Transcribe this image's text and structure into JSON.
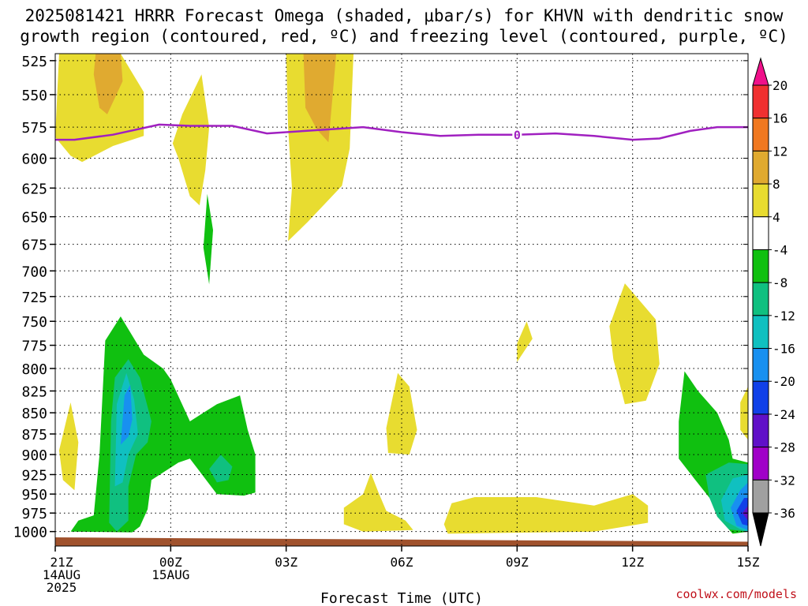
{
  "title_line1": "2025081421 HRRR Forecast Omega (shaded, μbar/s) for KHVN with dendritic snow",
  "title_line2": "growth region (contoured, red, ºC) and freezing level (contoured, purple, ºC)",
  "credit": "coolwx.com/models",
  "chart_data": {
    "type": "heatmap",
    "title": "2025081421 HRRR Forecast Omega (shaded, μbar/s) for KHVN",
    "xlabel": "Forecast Time (UTC)",
    "ylabel": "",
    "x_hours": [
      0,
      3,
      6,
      9,
      12,
      15,
      18
    ],
    "x_ticks": [
      {
        "hour": 0,
        "lines": [
          "21Z",
          "14AUG",
          "2025"
        ]
      },
      {
        "hour": 3,
        "lines": [
          "00Z",
          "15AUG"
        ]
      },
      {
        "hour": 6,
        "lines": [
          "03Z"
        ]
      },
      {
        "hour": 9,
        "lines": [
          "06Z"
        ]
      },
      {
        "hour": 12,
        "lines": [
          "09Z"
        ]
      },
      {
        "hour": 15,
        "lines": [
          "12Z"
        ]
      },
      {
        "hour": 18,
        "lines": [
          "15Z"
        ]
      }
    ],
    "y_ticks": [
      525,
      550,
      575,
      600,
      625,
      650,
      675,
      700,
      725,
      750,
      775,
      800,
      825,
      850,
      875,
      900,
      925,
      950,
      975,
      1000
    ],
    "xlim": [
      0,
      18
    ],
    "ylim_hpa": [
      520,
      1020
    ],
    "y_scale": "log-pressure",
    "grid": true,
    "colorbar": {
      "labels": [
        "20",
        "16",
        "12",
        "8",
        "4",
        "-4",
        "-8",
        "-12",
        "-16",
        "-20",
        "-24",
        "-28",
        "-32",
        "-36"
      ],
      "colors": [
        "#f0108a",
        "#f03030",
        "#f07820",
        "#e0aa30",
        "#e8dc30",
        "#ffffff",
        "#10c010",
        "#10c080",
        "#10c0c0",
        "#1890f0",
        "#1040e8",
        "#6010c8",
        "#a000c8",
        "#a0a0a0",
        "#000000"
      ]
    },
    "freezing_level": {
      "label": "0",
      "label_hour": 12,
      "color": "#a020c0",
      "points": [
        [
          0,
          585
        ],
        [
          0.5,
          585
        ],
        [
          1.5,
          581
        ],
        [
          2.7,
          573
        ],
        [
          3.5,
          574
        ],
        [
          4.6,
          574
        ],
        [
          5.5,
          580
        ],
        [
          6.5,
          578
        ],
        [
          8,
          575
        ],
        [
          9,
          579
        ],
        [
          10,
          582
        ],
        [
          11,
          581
        ],
        [
          12,
          581
        ],
        [
          13,
          580
        ],
        [
          14,
          582
        ],
        [
          15,
          585
        ],
        [
          15.7,
          584
        ],
        [
          16.5,
          578
        ],
        [
          17.2,
          575
        ],
        [
          18,
          575
        ]
      ]
    },
    "omega_regions": [
      {
        "level": "4",
        "color": "#e8dc30",
        "points": [
          [
            0.1,
            520
          ],
          [
            1.7,
            520
          ],
          [
            2.3,
            548
          ],
          [
            2.3,
            582
          ],
          [
            1.5,
            590
          ],
          [
            0.7,
            603
          ],
          [
            0.4,
            598
          ],
          [
            0,
            583
          ]
        ]
      },
      {
        "level": "8",
        "color": "#e0aa30",
        "points": [
          [
            1.05,
            520
          ],
          [
            1.7,
            520
          ],
          [
            1.75,
            540
          ],
          [
            1.35,
            565
          ],
          [
            1.15,
            560
          ],
          [
            1.0,
            535
          ]
        ]
      },
      {
        "level": "4",
        "color": "#e8dc30",
        "points": [
          [
            3.05,
            588
          ],
          [
            3.3,
            565
          ],
          [
            3.8,
            535
          ],
          [
            4.0,
            575
          ],
          [
            3.9,
            610
          ],
          [
            3.75,
            640
          ],
          [
            3.5,
            632
          ],
          [
            3.2,
            600
          ]
        ]
      },
      {
        "level": "4",
        "color": "#e8dc30",
        "points": [
          [
            6.0,
            520
          ],
          [
            7.75,
            520
          ],
          [
            7.65,
            592
          ],
          [
            7.45,
            623
          ],
          [
            6.55,
            655
          ],
          [
            6.05,
            672
          ],
          [
            6.15,
            625
          ],
          [
            6.05,
            575
          ]
        ]
      },
      {
        "level": "8",
        "color": "#e0aa30",
        "points": [
          [
            6.45,
            520
          ],
          [
            7.3,
            520
          ],
          [
            7.2,
            553
          ],
          [
            7.1,
            587
          ],
          [
            6.8,
            577
          ],
          [
            6.5,
            560
          ]
        ]
      },
      {
        "level": "-4",
        "color": "#10c010",
        "points": [
          [
            3.95,
            630
          ],
          [
            4.1,
            662
          ],
          [
            4.0,
            713
          ],
          [
            3.85,
            678
          ]
        ]
      },
      {
        "level": "4",
        "color": "#e8dc30",
        "points": [
          [
            0.1,
            895
          ],
          [
            0.4,
            838
          ],
          [
            0.6,
            885
          ],
          [
            0.5,
            945
          ],
          [
            0.2,
            932
          ]
        ]
      },
      {
        "level": "4",
        "color": "#e8dc30",
        "points": [
          [
            12.0,
            773
          ],
          [
            12.25,
            750
          ],
          [
            12.4,
            768
          ],
          [
            12.0,
            793
          ]
        ]
      },
      {
        "level": "4",
        "color": "#e8dc30",
        "points": [
          [
            14.4,
            755
          ],
          [
            14.8,
            712
          ],
          [
            15.6,
            748
          ],
          [
            15.7,
            795
          ],
          [
            15.35,
            836
          ],
          [
            14.8,
            840
          ],
          [
            14.5,
            790
          ]
        ]
      },
      {
        "level": "4",
        "color": "#e8dc30",
        "points": [
          [
            8.6,
            868
          ],
          [
            8.9,
            805
          ],
          [
            9.2,
            820
          ],
          [
            9.4,
            870
          ],
          [
            9.2,
            900
          ],
          [
            8.65,
            898
          ]
        ]
      },
      {
        "level": "4",
        "color": "#e8dc30",
        "points": [
          [
            17.8,
            838
          ],
          [
            18,
            820
          ],
          [
            18,
            882
          ],
          [
            17.8,
            870
          ]
        ]
      },
      {
        "level": "4",
        "color": "#e8dc30",
        "points": [
          [
            7.5,
            968
          ],
          [
            8.0,
            950
          ],
          [
            8.2,
            923
          ],
          [
            8.4,
            948
          ],
          [
            8.6,
            972
          ],
          [
            9.1,
            985
          ],
          [
            9.3,
            998
          ],
          [
            8.0,
            1000
          ],
          [
            7.5,
            990
          ]
        ]
      },
      {
        "level": "4",
        "color": "#e8dc30",
        "points": [
          [
            10.1,
            990
          ],
          [
            10.3,
            962
          ],
          [
            10.9,
            954
          ],
          [
            12.5,
            954
          ],
          [
            14.0,
            965
          ],
          [
            15.0,
            950
          ],
          [
            15.4,
            965
          ],
          [
            15.4,
            988
          ],
          [
            14.0,
            1000
          ],
          [
            10.2,
            1003
          ]
        ]
      },
      {
        "level": "-4",
        "color": "#10c010",
        "points": [
          [
            0.4,
            1000
          ],
          [
            0.6,
            985
          ],
          [
            1.0,
            978
          ],
          [
            1.15,
            900
          ],
          [
            1.3,
            770
          ],
          [
            1.7,
            745
          ],
          [
            2.3,
            785
          ],
          [
            2.8,
            800
          ],
          [
            3.0,
            812
          ],
          [
            3.5,
            860
          ],
          [
            4.2,
            840
          ],
          [
            4.8,
            830
          ],
          [
            5.0,
            870
          ],
          [
            5.2,
            900
          ],
          [
            5.2,
            948
          ],
          [
            4.9,
            952
          ],
          [
            4.2,
            950
          ],
          [
            3.5,
            905
          ],
          [
            3.2,
            910
          ],
          [
            2.5,
            932
          ],
          [
            2.4,
            970
          ],
          [
            2.2,
            993
          ],
          [
            2.0,
            1001
          ]
        ]
      },
      {
        "level": "-8",
        "color": "#10c080",
        "points": [
          [
            1.4,
            988
          ],
          [
            1.45,
            860
          ],
          [
            1.55,
            810
          ],
          [
            1.9,
            790
          ],
          [
            2.2,
            810
          ],
          [
            2.5,
            860
          ],
          [
            2.4,
            885
          ],
          [
            2.1,
            900
          ],
          [
            1.9,
            940
          ],
          [
            1.9,
            985
          ],
          [
            1.6,
            1000
          ]
        ]
      },
      {
        "level": "-12",
        "color": "#10c0c0",
        "points": [
          [
            1.55,
            940
          ],
          [
            1.6,
            840
          ],
          [
            1.85,
            805
          ],
          [
            2.05,
            835
          ],
          [
            2.15,
            875
          ],
          [
            1.9,
            900
          ],
          [
            1.75,
            935
          ]
        ]
      },
      {
        "level": "-16",
        "color": "#1890f0",
        "points": [
          [
            1.7,
            888
          ],
          [
            1.8,
            830
          ],
          [
            1.95,
            818
          ],
          [
            2.0,
            858
          ],
          [
            1.9,
            878
          ]
        ]
      },
      {
        "level": "-8",
        "color": "#10c080",
        "points": [
          [
            4.0,
            918
          ],
          [
            4.3,
            900
          ],
          [
            4.6,
            915
          ],
          [
            4.5,
            932
          ],
          [
            4.2,
            935
          ]
        ]
      },
      {
        "level": "-4",
        "color": "#10c010",
        "points": [
          [
            16.2,
            860
          ],
          [
            16.35,
            803
          ],
          [
            16.7,
            825
          ],
          [
            17.2,
            850
          ],
          [
            17.5,
            882
          ],
          [
            17.6,
            905
          ],
          [
            18,
            910
          ],
          [
            18,
            1000
          ],
          [
            17.6,
            1003
          ],
          [
            17.3,
            985
          ],
          [
            17.0,
            955
          ],
          [
            16.6,
            930
          ],
          [
            16.2,
            905
          ]
        ]
      },
      {
        "level": "-8",
        "color": "#10c080",
        "points": [
          [
            16.9,
            925
          ],
          [
            17.5,
            910
          ],
          [
            18,
            912
          ],
          [
            18,
            1000
          ],
          [
            17.5,
            997
          ],
          [
            17.2,
            980
          ],
          [
            17.0,
            955
          ]
        ]
      },
      {
        "level": "-12",
        "color": "#10c0c0",
        "points": [
          [
            17.3,
            958
          ],
          [
            17.6,
            930
          ],
          [
            18,
            925
          ],
          [
            18,
            1000
          ],
          [
            17.8,
            997
          ],
          [
            17.4,
            985
          ]
        ]
      },
      {
        "level": "-16",
        "color": "#1890f0",
        "points": [
          [
            17.55,
            968
          ],
          [
            17.8,
            945
          ],
          [
            18,
            935
          ],
          [
            18,
            998
          ],
          [
            17.7,
            992
          ]
        ]
      },
      {
        "level": "-20",
        "color": "#1040e8",
        "points": [
          [
            17.7,
            972
          ],
          [
            17.9,
            955
          ],
          [
            18,
            955
          ],
          [
            18,
            992
          ],
          [
            17.85,
            990
          ]
        ]
      },
      {
        "level": "-24",
        "color": "#6010c8",
        "points": [
          [
            17.85,
            975
          ],
          [
            18,
            965
          ],
          [
            18,
            985
          ]
        ]
      }
    ],
    "terrain": {
      "color": "#a0522d",
      "points": [
        [
          0,
          1008
        ],
        [
          3,
          1009
        ],
        [
          6,
          1010
        ],
        [
          9,
          1011
        ],
        [
          12,
          1012
        ],
        [
          15,
          1013
        ],
        [
          18,
          1014
        ]
      ]
    }
  }
}
